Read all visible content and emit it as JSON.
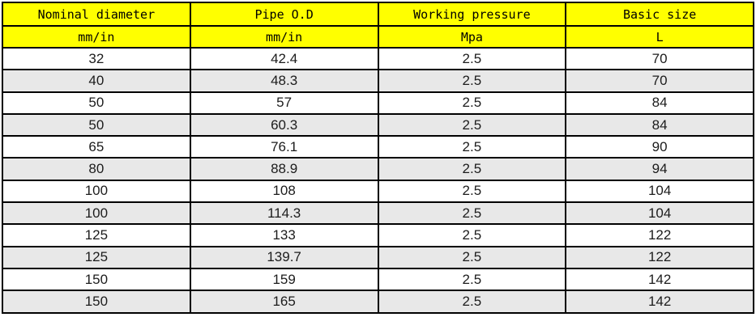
{
  "chart_data": {
    "type": "table",
    "columns": [
      {
        "title": "Nominal diameter",
        "unit": "mm/in"
      },
      {
        "title": "Pipe O.D",
        "unit": "mm/in"
      },
      {
        "title": "Working pressure",
        "unit": "Mpa"
      },
      {
        "title": "Basic size",
        "unit": "L"
      }
    ],
    "rows": [
      [
        "32",
        "42.4",
        "2.5",
        "70"
      ],
      [
        "40",
        "48.3",
        "2.5",
        "70"
      ],
      [
        "50",
        "57",
        "2.5",
        "84"
      ],
      [
        "50",
        "60.3",
        "2.5",
        "84"
      ],
      [
        "65",
        "76.1",
        "2.5",
        "90"
      ],
      [
        "80",
        "88.9",
        "2.5",
        "94"
      ],
      [
        "100",
        "108",
        "2.5",
        "104"
      ],
      [
        "100",
        "114.3",
        "2.5",
        "104"
      ],
      [
        "125",
        "133",
        "2.5",
        "122"
      ],
      [
        "125",
        "139.7",
        "2.5",
        "122"
      ],
      [
        "150",
        "159",
        "2.5",
        "142"
      ],
      [
        "150",
        "165",
        "2.5",
        "142"
      ]
    ],
    "layout_hints": {
      "header_rows": 2,
      "column_count": 4,
      "equal_column_widths": true,
      "row_banding": "white-gray-alternating"
    }
  },
  "colors": {
    "header_bg": "#ffff00",
    "alt_row_bg": "#e8e8e8",
    "border": "#000000",
    "page_bg": "#ffffff"
  }
}
